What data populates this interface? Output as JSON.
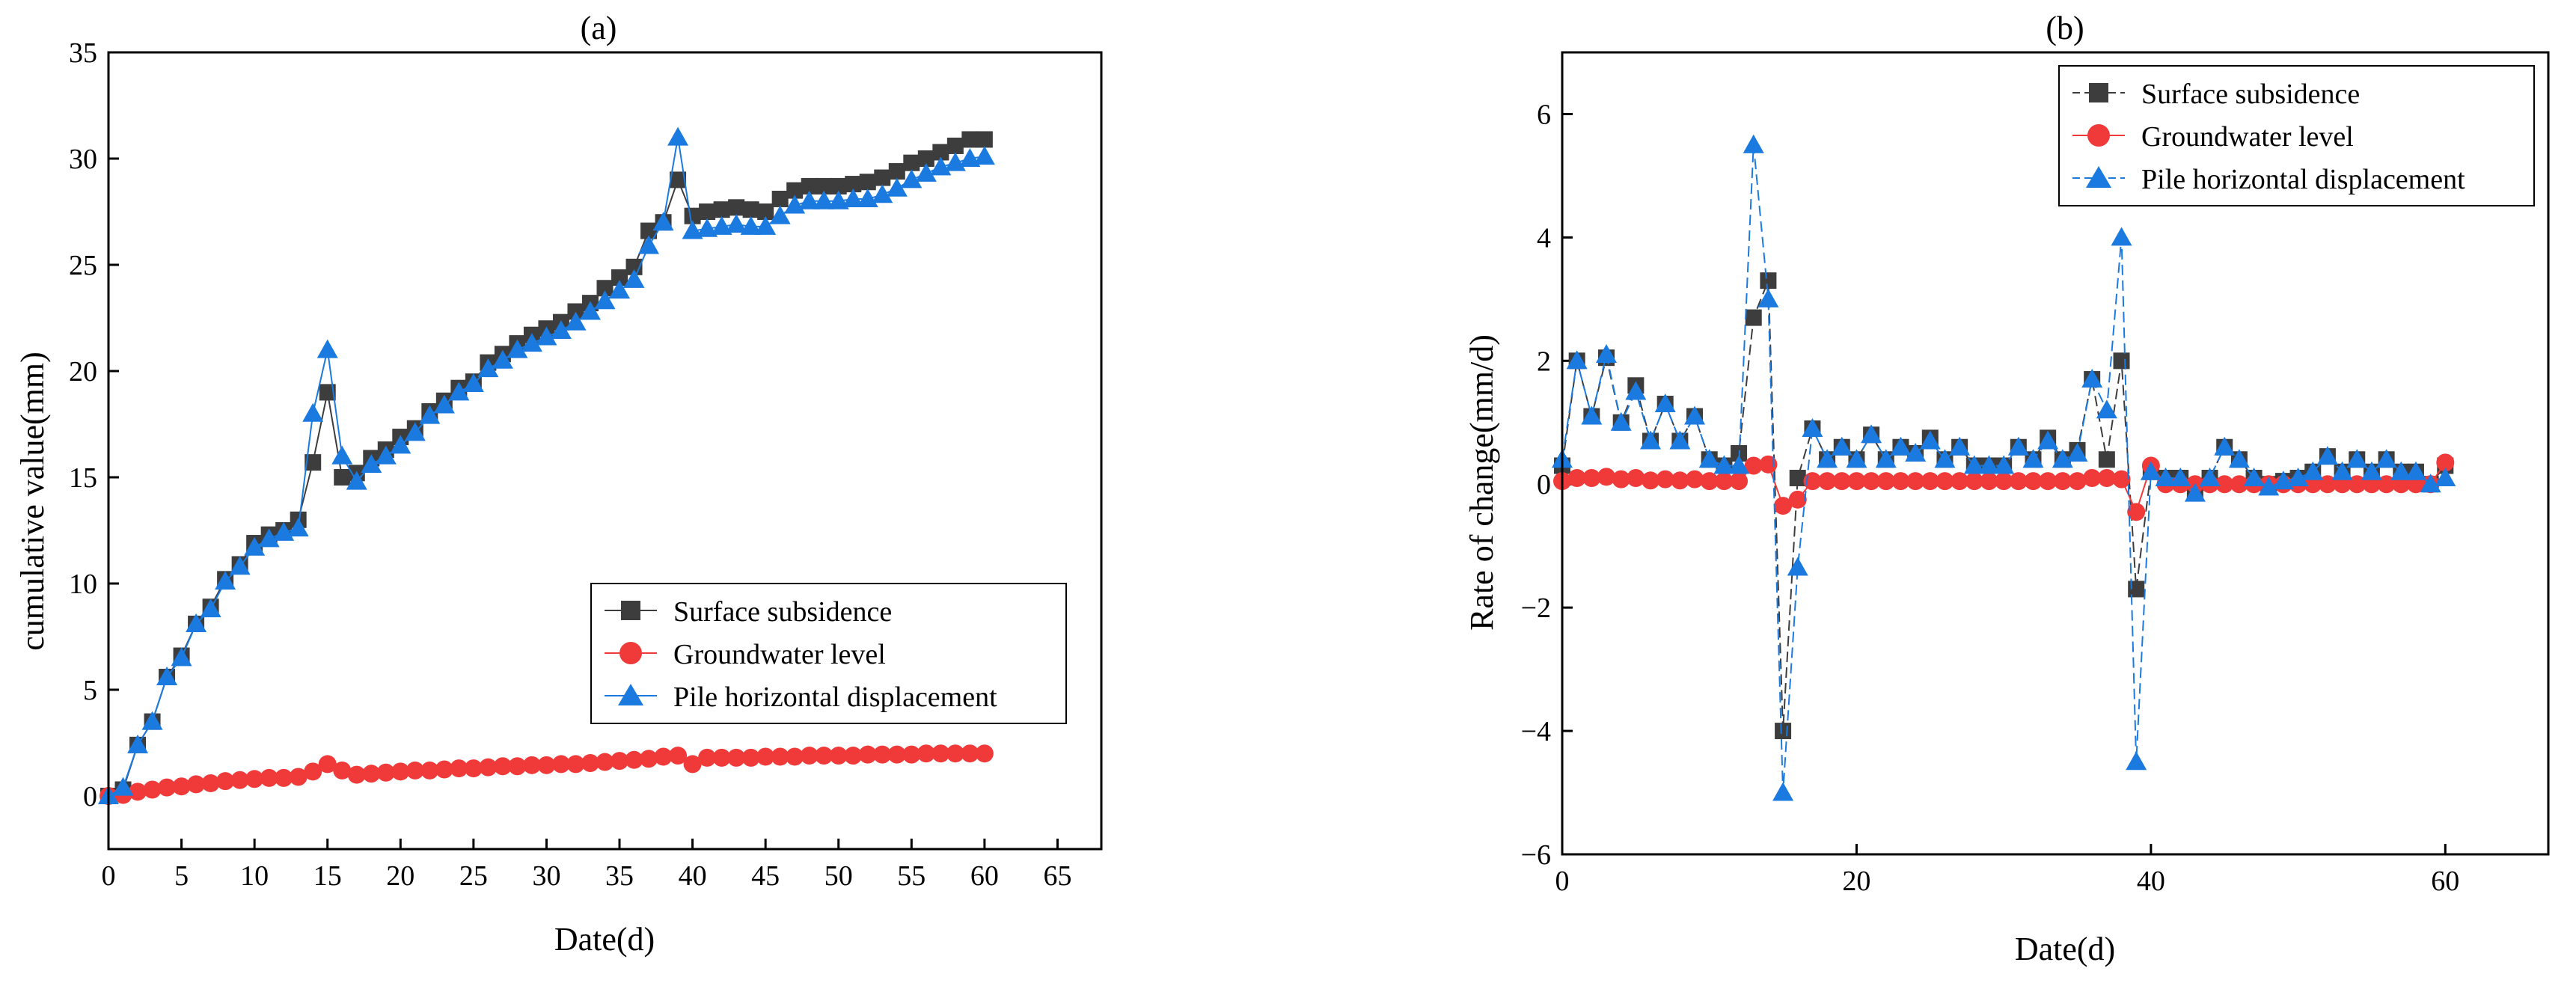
{
  "colors": {
    "subsidence": "#3d3d3d",
    "groundwater": "#f03a3a",
    "pile": "#1a7ae0",
    "axis": "#000000"
  },
  "legend_entries": [
    "Surface subsidence",
    "Groundwater level",
    "Pile horizontal displacement"
  ],
  "chart_data": [
    {
      "type": "line",
      "title": "(a)",
      "xlabel": "Date(d)",
      "ylabel": "cumulative value(mm)",
      "xlim": [
        0,
        68
      ],
      "ylim": [
        -2.5,
        35
      ],
      "xticks": [
        0,
        5,
        10,
        15,
        20,
        25,
        30,
        35,
        40,
        45,
        50,
        55,
        60,
        65
      ],
      "yticks": [
        0,
        5,
        10,
        15,
        20,
        25,
        30,
        35
      ],
      "legend_position": "lower-right",
      "x": [
        0,
        1,
        2,
        3,
        4,
        5,
        6,
        7,
        8,
        9,
        10,
        11,
        12,
        13,
        14,
        15,
        16,
        17,
        18,
        19,
        20,
        21,
        22,
        23,
        24,
        25,
        26,
        27,
        28,
        29,
        30,
        31,
        32,
        33,
        34,
        35,
        36,
        37,
        38,
        39,
        40,
        41,
        42,
        43,
        44,
        45,
        46,
        47,
        48,
        49,
        50,
        51,
        52,
        53,
        54,
        55,
        56,
        57,
        58,
        59,
        60
      ],
      "series": [
        {
          "name": "Surface subsidence",
          "marker": "square",
          "dashed": false,
          "values": [
            0,
            0.3,
            2.4,
            3.5,
            5.6,
            6.6,
            8.1,
            8.9,
            10.2,
            10.9,
            11.9,
            12.3,
            12.5,
            13.0,
            15.7,
            19.0,
            15.0,
            15.2,
            15.9,
            16.3,
            16.9,
            17.3,
            18.1,
            18.6,
            19.2,
            19.5,
            20.4,
            20.8,
            21.3,
            21.7,
            22.0,
            22.3,
            22.8,
            23.2,
            23.9,
            24.4,
            24.9,
            26.6,
            27.0,
            29.0,
            27.3,
            27.5,
            27.6,
            27.7,
            27.6,
            27.5,
            28.1,
            28.5,
            28.7,
            28.7,
            28.7,
            28.8,
            28.9,
            29.1,
            29.4,
            29.8,
            30.0,
            30.3,
            30.6,
            30.9,
            30.9
          ]
        },
        {
          "name": "Groundwater level",
          "marker": "circle",
          "dashed": false,
          "values": [
            0,
            0.05,
            0.2,
            0.3,
            0.4,
            0.45,
            0.55,
            0.6,
            0.7,
            0.75,
            0.8,
            0.85,
            0.85,
            0.9,
            1.15,
            1.5,
            1.2,
            1.0,
            1.05,
            1.1,
            1.15,
            1.2,
            1.2,
            1.25,
            1.3,
            1.3,
            1.35,
            1.4,
            1.4,
            1.45,
            1.45,
            1.5,
            1.5,
            1.55,
            1.6,
            1.65,
            1.7,
            1.75,
            1.85,
            1.9,
            1.5,
            1.8,
            1.8,
            1.8,
            1.8,
            1.85,
            1.85,
            1.85,
            1.9,
            1.9,
            1.9,
            1.9,
            1.95,
            1.95,
            1.95,
            1.95,
            2.0,
            2.0,
            2.0,
            2.0,
            2.0
          ]
        },
        {
          "name": "Pile horizontal displacement",
          "marker": "triangle",
          "dashed": false,
          "values": [
            0,
            0.4,
            2.4,
            3.5,
            5.6,
            6.5,
            8.1,
            8.8,
            10.1,
            10.8,
            11.7,
            12.1,
            12.4,
            12.6,
            18.0,
            21.0,
            16.0,
            14.8,
            15.6,
            16.0,
            16.5,
            17.1,
            17.9,
            18.4,
            19.0,
            19.4,
            20.1,
            20.5,
            21.0,
            21.3,
            21.6,
            21.9,
            22.3,
            22.8,
            23.3,
            23.8,
            24.3,
            25.9,
            27.0,
            31.0,
            26.6,
            26.7,
            26.8,
            26.9,
            26.8,
            26.8,
            27.3,
            27.8,
            28.0,
            28.0,
            28.0,
            28.1,
            28.1,
            28.3,
            28.6,
            29.0,
            29.3,
            29.6,
            29.8,
            30.0,
            30.1
          ]
        }
      ]
    },
    {
      "type": "line",
      "title": "(b)",
      "xlabel": "Date(d)",
      "ylabel": "Rate of change(mm/d)",
      "xlim": [
        0,
        67
      ],
      "ylim": [
        -6,
        7
      ],
      "xticks": [
        0,
        20,
        40,
        60
      ],
      "yticks": [
        -6,
        -4,
        -2,
        0,
        2,
        4,
        6
      ],
      "legend_position": "top-right",
      "x": [
        0,
        1,
        2,
        3,
        4,
        5,
        6,
        7,
        8,
        9,
        10,
        11,
        12,
        13,
        14,
        15,
        16,
        17,
        18,
        19,
        20,
        21,
        22,
        23,
        24,
        25,
        26,
        27,
        28,
        29,
        30,
        31,
        32,
        33,
        34,
        35,
        36,
        37,
        38,
        39,
        40,
        41,
        42,
        43,
        44,
        45,
        46,
        47,
        48,
        49,
        50,
        51,
        52,
        53,
        54,
        55,
        56,
        57,
        58,
        59,
        60
      ],
      "series": [
        {
          "name": "Surface subsidence",
          "marker": "square",
          "dashed": true,
          "values": [
            0.3,
            2.0,
            1.1,
            2.05,
            1.0,
            1.6,
            0.7,
            1.3,
            0.7,
            1.1,
            0.4,
            0.3,
            0.5,
            2.7,
            3.3,
            -4.0,
            0.1,
            0.9,
            0.4,
            0.6,
            0.4,
            0.8,
            0.4,
            0.6,
            0.5,
            0.75,
            0.4,
            0.6,
            0.3,
            0.3,
            0.3,
            0.6,
            0.4,
            0.75,
            0.4,
            0.55,
            1.7,
            0.4,
            2.0,
            -1.7,
            0.2,
            0.1,
            0.1,
            -0.1,
            0.1,
            0.6,
            0.4,
            0.1,
            0.0,
            0.05,
            0.1,
            0.2,
            0.45,
            0.2,
            0.4,
            0.2,
            0.4,
            0.2,
            0.2,
            0.0,
            0.3
          ]
        },
        {
          "name": "Groundwater level",
          "marker": "circle",
          "dashed": false,
          "values": [
            0.05,
            0.1,
            0.1,
            0.12,
            0.08,
            0.1,
            0.06,
            0.08,
            0.06,
            0.08,
            0.05,
            0.05,
            0.05,
            0.3,
            0.32,
            -0.35,
            -0.25,
            0.05,
            0.05,
            0.05,
            0.05,
            0.05,
            0.05,
            0.05,
            0.05,
            0.05,
            0.05,
            0.05,
            0.05,
            0.05,
            0.05,
            0.05,
            0.05,
            0.05,
            0.05,
            0.05,
            0.1,
            0.1,
            0.08,
            -0.45,
            0.3,
            0.0,
            0.0,
            0.0,
            0.0,
            0.0,
            0.0,
            0.0,
            0.0,
            0.0,
            0.0,
            0.0,
            0.0,
            0.0,
            0.0,
            0.0,
            0.0,
            0.0,
            0.0,
            0.0,
            0.35
          ]
        },
        {
          "name": "Pile horizontal displacement",
          "marker": "triangle",
          "dashed": true,
          "values": [
            0.4,
            2.0,
            1.1,
            2.1,
            1.0,
            1.5,
            0.7,
            1.3,
            0.7,
            1.1,
            0.4,
            0.3,
            0.3,
            5.5,
            3.0,
            -5.0,
            -1.35,
            0.9,
            0.4,
            0.6,
            0.4,
            0.8,
            0.4,
            0.6,
            0.5,
            0.7,
            0.4,
            0.6,
            0.3,
            0.3,
            0.3,
            0.6,
            0.4,
            0.7,
            0.4,
            0.5,
            1.7,
            1.2,
            4.0,
            -4.5,
            0.2,
            0.1,
            0.1,
            -0.15,
            0.1,
            0.6,
            0.4,
            0.1,
            -0.05,
            0.05,
            0.1,
            0.2,
            0.45,
            0.2,
            0.4,
            0.2,
            0.4,
            0.2,
            0.2,
            0.0,
            0.1
          ]
        }
      ]
    }
  ]
}
